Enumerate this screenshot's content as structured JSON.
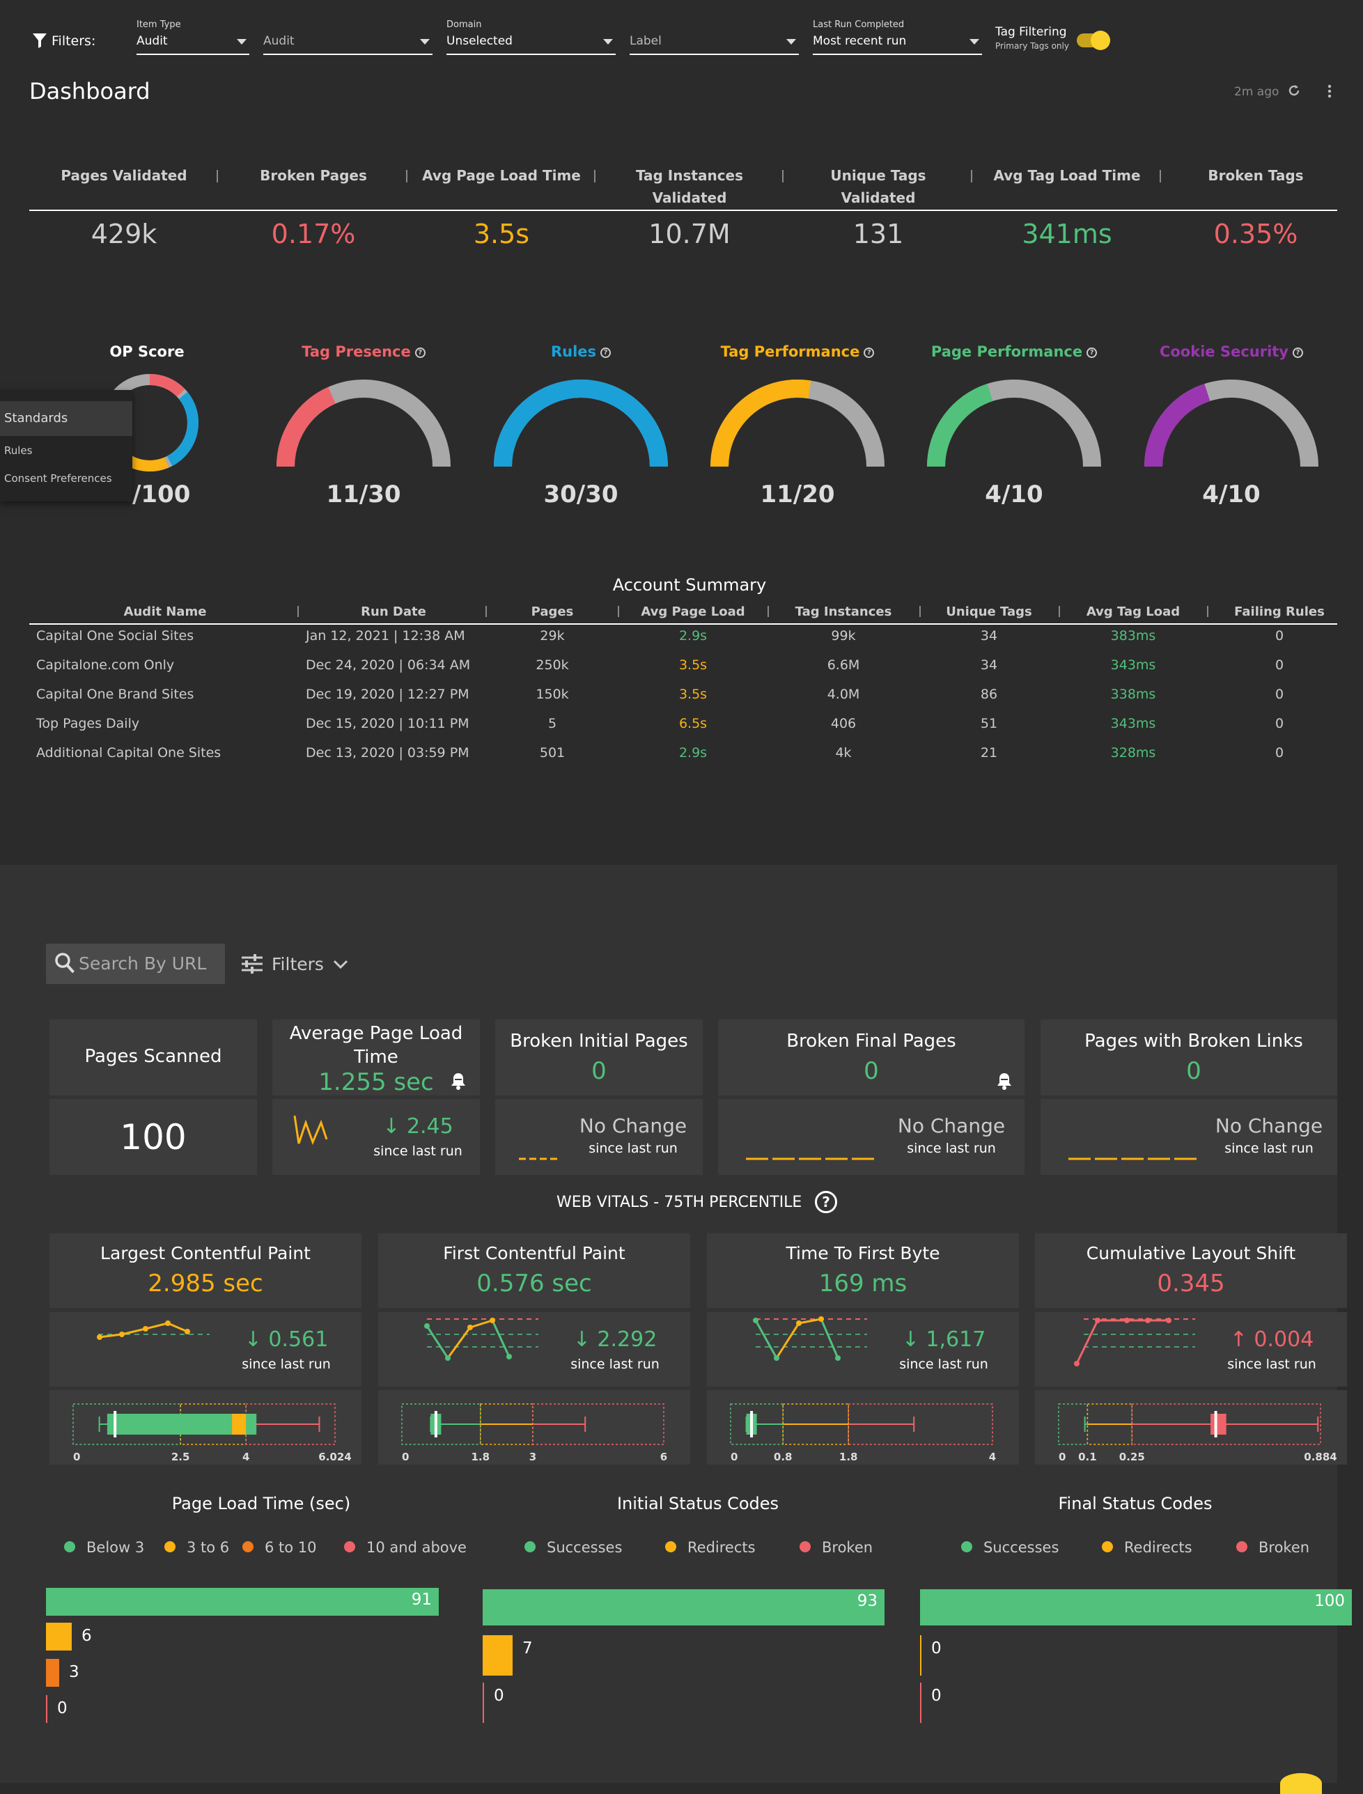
{
  "filters": {
    "label": "Filters:",
    "item_type": {
      "label": "Item Type",
      "value": "Audit"
    },
    "audit": {
      "value": "Audit"
    },
    "domain": {
      "label": "Domain",
      "value": "Unselected"
    },
    "label_dd": {
      "value": "Label"
    },
    "last_run": {
      "label": "Last Run Completed",
      "value": "Most recent run"
    },
    "tag_filtering": {
      "label": "Tag Filtering",
      "sub": "Primary Tags only",
      "enabled": true
    }
  },
  "dashboard": {
    "title": "Dashboard",
    "updated": "2m ago"
  },
  "metrics": [
    {
      "label1": "Pages Validated",
      "label2": "",
      "value": "429k",
      "color": "#cfcfcf"
    },
    {
      "label1": "Broken Pages",
      "label2": "",
      "value": "0.17%",
      "color": "#ee6369"
    },
    {
      "label1": "Avg Page Load Time",
      "label2": "",
      "value": "3.5s",
      "color": "#fbb213"
    },
    {
      "label1": "Tag Instances",
      "label2": "Validated",
      "value": "10.7M",
      "color": "#cfcfcf"
    },
    {
      "label1": "Unique Tags",
      "label2": "Validated",
      "value": "131",
      "color": "#cfcfcf"
    },
    {
      "label1": "Avg Tag Load Time",
      "label2": "",
      "value": "341ms",
      "color": "#51c17b"
    },
    {
      "label1": "Broken Tags",
      "label2": "",
      "value": "0.35%",
      "color": "#ee6369"
    }
  ],
  "op_score": {
    "title": "OP Score",
    "value": "/100"
  },
  "gauges": [
    {
      "title": "Tag Presence",
      "value": "11/30",
      "numerator": 11,
      "denominator": 30,
      "color": "#ee6369"
    },
    {
      "title": "Rules",
      "value": "30/30",
      "numerator": 30,
      "denominator": 30,
      "color": "#1ba1d8"
    },
    {
      "title": "Tag Performance",
      "value": "11/20",
      "numerator": 11,
      "denominator": 20,
      "color": "#fbb213"
    },
    {
      "title": "Page Performance",
      "value": "4/10",
      "numerator": 4,
      "denominator": 10,
      "color": "#51c17b"
    },
    {
      "title": "Cookie Security",
      "value": "4/10",
      "numerator": 4,
      "denominator": 10,
      "color": "#9a36b0"
    }
  ],
  "standards_menu": {
    "header": "Standards",
    "items": [
      "Rules",
      "Consent Preferences"
    ]
  },
  "account_summary": {
    "title": "Account Summary",
    "columns": [
      "Audit Name",
      "Run Date",
      "Pages",
      "Avg Page Load",
      "Tag Instances",
      "Unique Tags",
      "Avg Tag Load",
      "Failing Rules"
    ],
    "rows": [
      {
        "name": "Capital One Social Sites",
        "date": "Jan 12, 2021 | 12:38 AM",
        "pages": "29k",
        "load": "2.9s",
        "load_color": "#51c17b",
        "inst": "99k",
        "unique": "34",
        "tag": "383ms",
        "fail": "0"
      },
      {
        "name": "Capitalone.com Only",
        "date": "Dec 24, 2020 | 06:34 AM",
        "pages": "250k",
        "load": "3.5s",
        "load_color": "#fbb213",
        "inst": "6.6M",
        "unique": "34",
        "tag": "343ms",
        "fail": "0"
      },
      {
        "name": "Capital One Brand Sites",
        "date": "Dec 19, 2020 | 12:27 PM",
        "pages": "150k",
        "load": "3.5s",
        "load_color": "#fbb213",
        "inst": "4.0M",
        "unique": "86",
        "tag": "338ms",
        "fail": "0"
      },
      {
        "name": "Top Pages Daily",
        "date": "Dec 15, 2020 | 10:11 PM",
        "pages": "5",
        "load": "6.5s",
        "load_color": "#fbb213",
        "inst": "406",
        "unique": "51",
        "tag": "343ms",
        "fail": "0"
      },
      {
        "name": "Additional Capital One Sites",
        "date": "Dec 13, 2020 | 03:59 PM",
        "pages": "501",
        "load": "2.9s",
        "load_color": "#51c17b",
        "inst": "4k",
        "unique": "21",
        "tag": "328ms",
        "fail": "0"
      }
    ]
  },
  "search": {
    "placeholder": "Search By URL",
    "filters_label": "Filters"
  },
  "summary_cards": {
    "pages_scanned": {
      "title": "Pages Scanned",
      "value": "100"
    },
    "avg_load": {
      "title": "Average Page Load Time",
      "value": "1.255 sec",
      "change": "2.45",
      "since": "since last run"
    },
    "broken_initial": {
      "title": "Broken Initial Pages",
      "value": "0",
      "change": "No Change",
      "since": "since last run"
    },
    "broken_final": {
      "title": "Broken Final Pages",
      "value": "0",
      "change": "No Change",
      "since": "since last run"
    },
    "broken_links": {
      "title": "Pages with Broken Links",
      "value": "0",
      "change": "No Change",
      "since": "since last run"
    }
  },
  "web_vitals": {
    "title": "WEB VITALS - 75TH PERCENTILE",
    "items": [
      {
        "title": "Largest Contentful Paint",
        "value": "2.985 sec",
        "color": "#fbb213",
        "change": "0.561",
        "dir": "down",
        "change_color": "#51c17b",
        "since": "since last run",
        "ticks": [
          "0",
          "2.5",
          "4",
          "6.024"
        ]
      },
      {
        "title": "First Contentful Paint",
        "value": "0.576 sec",
        "color": "#51c17b",
        "change": "2.292",
        "dir": "down",
        "change_color": "#51c17b",
        "since": "since last run",
        "ticks": [
          "0",
          "1.8",
          "3",
          "6"
        ]
      },
      {
        "title": "Time To First Byte",
        "value": "169 ms",
        "color": "#51c17b",
        "change": "1,617",
        "dir": "down",
        "change_color": "#51c17b",
        "since": "since last run",
        "ticks": [
          "0",
          "0.8",
          "1.8",
          "4"
        ]
      },
      {
        "title": "Cumulative Layout Shift",
        "value": "0.345",
        "color": "#ee6369",
        "change": "0.004",
        "dir": "up",
        "change_color": "#ee6369",
        "since": "since last run",
        "ticks": [
          "0",
          "0.1",
          "0.25",
          "0.884"
        ]
      }
    ]
  },
  "chart_data": [
    {
      "type": "bar",
      "title": "Page Load Time (sec)",
      "categories": [
        "Below 3",
        "3 to 6",
        "6 to 10",
        "10 and above"
      ],
      "values": [
        91,
        6,
        3,
        0
      ],
      "colors": [
        "#51c17b",
        "#fbb213",
        "#f07a1c",
        "#ee6369"
      ]
    },
    {
      "type": "bar",
      "title": "Initial Status Codes",
      "categories": [
        "Successes",
        "Redirects",
        "Broken"
      ],
      "values": [
        93,
        7,
        0
      ],
      "colors": [
        "#51c17b",
        "#fbb213",
        "#ee6369"
      ]
    },
    {
      "type": "bar",
      "title": "Final Status Codes",
      "categories": [
        "Successes",
        "Redirects",
        "Broken"
      ],
      "values": [
        100,
        0,
        0
      ],
      "colors": [
        "#51c17b",
        "#fbb213",
        "#ee6369"
      ]
    }
  ]
}
